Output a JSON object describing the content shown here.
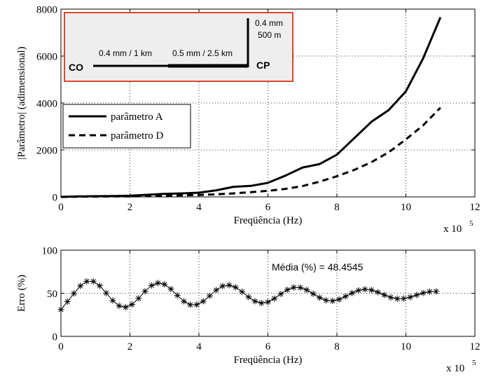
{
  "chart_data": [
    {
      "type": "line",
      "xlabel": "Freqüência (Hz)",
      "ylabel": "|Parâmetro| (adimensional)",
      "x_multiplier": "x 10",
      "x_multiplier_exp": "5",
      "xlim": [
        0,
        12
      ],
      "ylim": [
        0,
        8000
      ],
      "xticks": [
        0,
        2,
        4,
        6,
        8,
        10,
        12
      ],
      "yticks": [
        0,
        2000,
        4000,
        6000,
        8000
      ],
      "xtick_labels": [
        "0",
        "2",
        "4",
        "6",
        "8",
        "10",
        "12"
      ],
      "ytick_labels": [
        "0",
        "2000",
        "4000",
        "6000",
        "8000"
      ],
      "grid": true,
      "legend": "middle-left",
      "series": [
        {
          "name": "parâmetro A",
          "style": "solid",
          "x": [
            0,
            0.5,
            1,
            1.5,
            2,
            2.5,
            3,
            3.5,
            4,
            4.5,
            5,
            5.5,
            6,
            6.5,
            7,
            7.5,
            8,
            8.5,
            9,
            9.5,
            10,
            10.5,
            11
          ],
          "values": [
            0,
            20,
            30,
            40,
            55,
            90,
            130,
            150,
            180,
            280,
            430,
            470,
            600,
            900,
            1250,
            1400,
            1800,
            2500,
            3200,
            3700,
            4500,
            5900,
            7650
          ]
        },
        {
          "name": "parâmetro D",
          "style": "dashed",
          "x": [
            0,
            0.5,
            1,
            1.5,
            2,
            2.5,
            3,
            3.5,
            4,
            4.5,
            5,
            5.5,
            6,
            6.5,
            7,
            7.5,
            8,
            8.5,
            9,
            9.5,
            10,
            10.5,
            11
          ],
          "values": [
            0,
            10,
            15,
            20,
            25,
            35,
            50,
            65,
            85,
            110,
            150,
            200,
            260,
            340,
            460,
            650,
            880,
            1150,
            1480,
            1900,
            2450,
            3050,
            3800
          ]
        }
      ],
      "inset": {
        "labels": {
          "co": "CO",
          "cp": "CP",
          "seg1": "0.4 mm / 1 km",
          "seg2": "0.5 mm / 2.5 km",
          "branch_line1": "0.4 mm",
          "branch_line2": "500 m"
        },
        "border_color": "#d9482b",
        "background": "#eeeeee"
      }
    },
    {
      "type": "line",
      "xlabel": "Freqüência (Hz)",
      "ylabel": "Erro (%)",
      "x_multiplier": "x 10",
      "x_multiplier_exp": "5",
      "xlim": [
        0,
        12
      ],
      "ylim": [
        0,
        100
      ],
      "xticks": [
        0,
        2,
        4,
        6,
        8,
        10,
        12
      ],
      "yticks": [
        0,
        50,
        100
      ],
      "xtick_labels": [
        "0",
        "2",
        "4",
        "6",
        "8",
        "10",
        "12"
      ],
      "ytick_labels": [
        "0",
        "50",
        "100"
      ],
      "grid": true,
      "annotation": "Média (%) = 48.4545",
      "series": [
        {
          "marker": "*",
          "x_start": 0,
          "x_end": 11,
          "x_step": 0.1875,
          "model": {
            "offset": 48.4545,
            "amp_start": 17,
            "amp_end": 3.5,
            "period": 2.0,
            "phase_peak": 0.85,
            "start_value": 31
          }
        }
      ]
    }
  ]
}
